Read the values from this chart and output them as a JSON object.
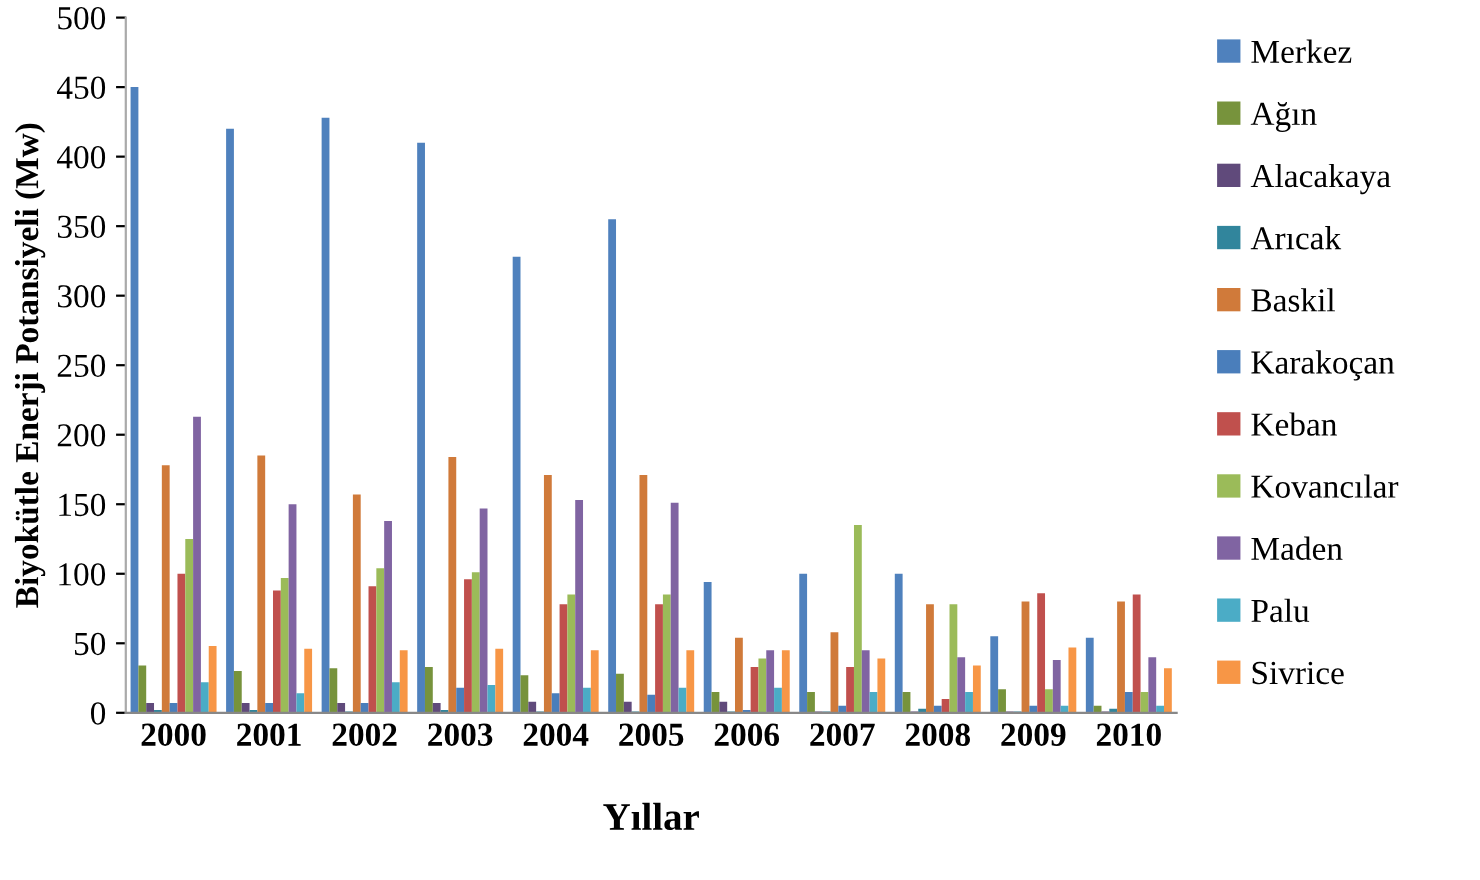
{
  "chart_data": {
    "type": "bar",
    "xlabel": "Yıllar",
    "ylabel": "Biyokütle Enerji Potansiyeli (Mw)",
    "categories": [
      "2000",
      "2001",
      "2002",
      "2003",
      "2004",
      "2005",
      "2006",
      "2007",
      "2008",
      "2009",
      "2010"
    ],
    "ylim": [
      0,
      500
    ],
    "yticks": [
      0,
      50,
      100,
      150,
      200,
      250,
      300,
      350,
      400,
      450,
      500
    ],
    "grid": false,
    "legend": "right",
    "series": [
      {
        "name": "Merkez",
        "color": "#4f81bd",
        "values": [
          450,
          420,
          428,
          410,
          328,
          355,
          94,
          100,
          100,
          55,
          54
        ]
      },
      {
        "name": "Ağın",
        "color": "#77933c",
        "values": [
          34,
          30,
          32,
          33,
          27,
          28,
          15,
          15,
          15,
          17,
          5
        ]
      },
      {
        "name": "Alacakaya",
        "color": "#604a7b",
        "values": [
          7,
          7,
          7,
          7,
          8,
          8,
          8,
          1,
          1,
          1,
          1
        ]
      },
      {
        "name": "Arıcak",
        "color": "#31859c",
        "values": [
          2,
          2,
          1,
          2,
          1,
          1,
          1,
          1,
          3,
          1,
          3
        ]
      },
      {
        "name": "Baskil",
        "color": "#d07a3a",
        "values": [
          178,
          185,
          157,
          184,
          171,
          171,
          54,
          58,
          78,
          80,
          80
        ]
      },
      {
        "name": "Karakoçan",
        "color": "#4a7ebb",
        "values": [
          7,
          7,
          7,
          18,
          14,
          13,
          2,
          5,
          5,
          5,
          15
        ]
      },
      {
        "name": "Keban",
        "color": "#c0504d",
        "values": [
          100,
          88,
          91,
          96,
          78,
          78,
          33,
          33,
          10,
          86,
          85
        ]
      },
      {
        "name": "Kovancılar",
        "color": "#9bbb59",
        "values": [
          125,
          97,
          104,
          101,
          85,
          85,
          39,
          135,
          78,
          17,
          15
        ]
      },
      {
        "name": "Maden",
        "color": "#8064a2",
        "values": [
          213,
          150,
          138,
          147,
          153,
          151,
          45,
          45,
          40,
          38,
          40
        ]
      },
      {
        "name": "Palu",
        "color": "#4bacc6",
        "values": [
          22,
          14,
          22,
          20,
          18,
          18,
          18,
          15,
          15,
          5,
          5
        ]
      },
      {
        "name": "Sivrice",
        "color": "#f79646",
        "values": [
          48,
          46,
          45,
          46,
          45,
          45,
          45,
          39,
          34,
          47,
          32
        ]
      }
    ]
  }
}
